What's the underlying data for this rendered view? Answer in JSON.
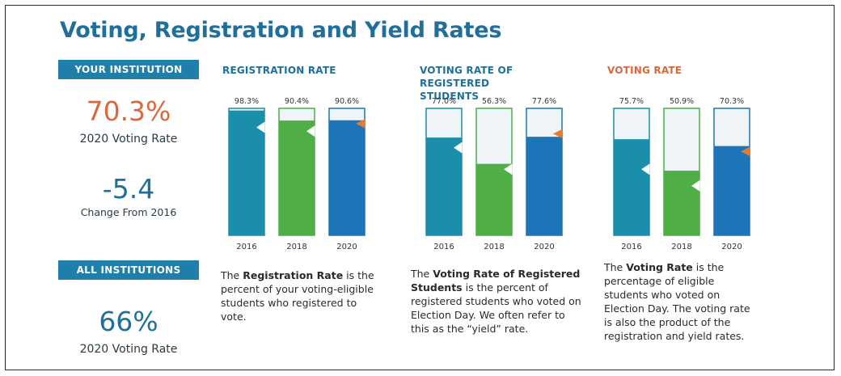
{
  "header": {
    "title": "Voting, Registration and Yield Rates"
  },
  "left": {
    "your_label": "YOUR INSTITUTION",
    "your_rate": "70.3%",
    "your_rate_caption": "2020 Voting Rate",
    "change": "-5.4",
    "change_caption": "Change From 2016",
    "all_label": "ALL INSTITUTIONS",
    "all_rate": "66%",
    "all_rate_caption": "2020 Voting Rate"
  },
  "panels": {
    "registration": {
      "title": "REGISTRATION RATE",
      "desc_pre": "The ",
      "desc_bold": "Registration Rate",
      "desc_post": " is the percent of your voting-eligible students who registered to vote."
    },
    "yield": {
      "title": "VOTING RATE OF REGISTERED STUDENTS",
      "desc_pre": "The ",
      "desc_bold": "Voting Rate of Registered Students",
      "desc_post": " is the percent of registered students who voted on Election Day. We often refer to this as the “yield” rate."
    },
    "voting": {
      "title": "VOTING RATE",
      "desc_pre": "The ",
      "desc_bold": "Voting Rate",
      "desc_post": " is the percentage of eligible students who voted on Election Day. The voting rate is also the product of the registration and yield rates."
    }
  },
  "colors": {
    "teal": "#1b8fa9",
    "green": "#4fae45",
    "blue": "#1d74b6",
    "empty": "#eef4f7",
    "orange": "#e77a34",
    "title_blue": "#1f6f9a"
  },
  "chart_data": [
    {
      "type": "bar",
      "title": "REGISTRATION RATE",
      "categories": [
        "2016",
        "2018",
        "2020"
      ],
      "values": [
        98.3,
        90.4,
        90.6
      ],
      "value_labels": [
        "98.3%",
        "90.4%",
        "90.6%"
      ],
      "ylim": [
        0,
        100
      ],
      "all_institutions_marker": [
        85,
        82,
        88
      ]
    },
    {
      "type": "bar",
      "title": "VOTING RATE OF REGISTERED STUDENTS",
      "categories": [
        "2016",
        "2018",
        "2020"
      ],
      "values": [
        77.0,
        56.3,
        77.6
      ],
      "value_labels": [
        "77.0%",
        "56.3%",
        "77.6%"
      ],
      "ylim": [
        0,
        100
      ],
      "all_institutions_marker": [
        69,
        52,
        80
      ]
    },
    {
      "type": "bar",
      "title": "VOTING RATE",
      "categories": [
        "2016",
        "2018",
        "2020"
      ],
      "values": [
        75.7,
        50.9,
        70.3
      ],
      "value_labels": [
        "75.7%",
        "50.9%",
        "70.3%"
      ],
      "ylim": [
        0,
        100
      ],
      "all_institutions_marker": [
        52,
        39,
        66
      ]
    }
  ]
}
